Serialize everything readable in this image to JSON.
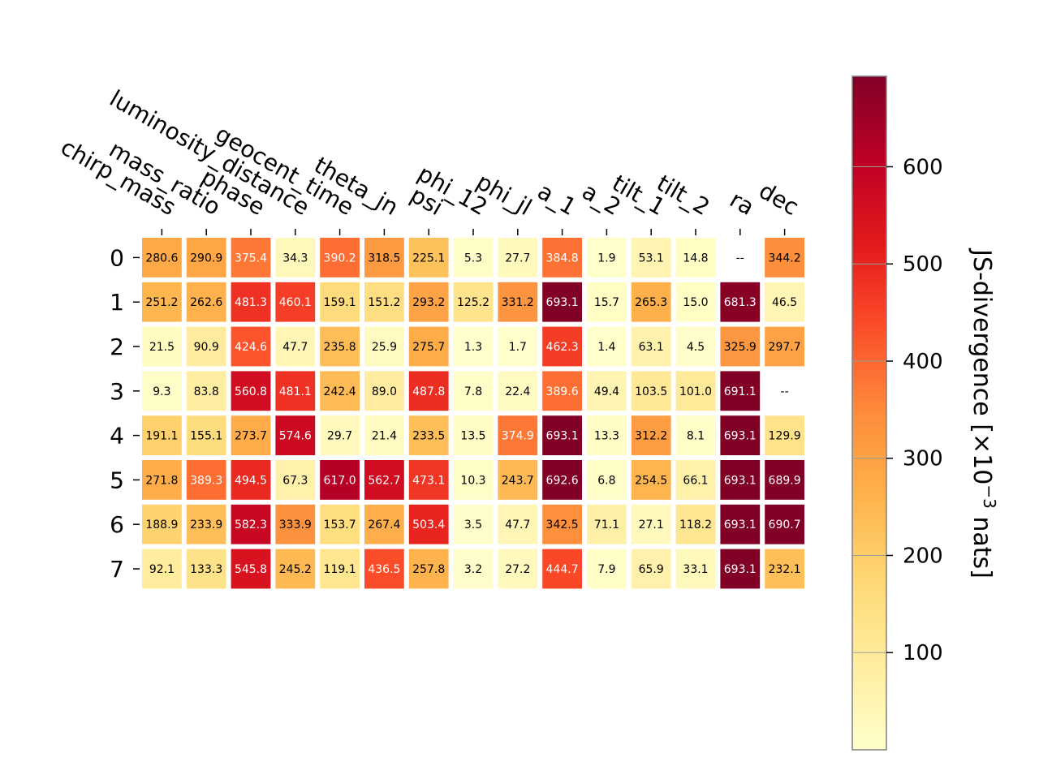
{
  "chart_data": {
    "type": "heatmap",
    "columns": [
      "chirp_mass",
      "mass_ratio",
      "phase",
      "luminosity_distance",
      "geocent_time",
      "theta_jn",
      "psi",
      "phi_12",
      "phi_jl",
      "a_1",
      "a_2",
      "tilt_1",
      "tilt_2",
      "ra",
      "dec"
    ],
    "rows": [
      "0",
      "1",
      "2",
      "3",
      "4",
      "5",
      "6",
      "7"
    ],
    "values": [
      [
        280.6,
        290.9,
        375.4,
        34.3,
        390.2,
        318.5,
        225.1,
        5.3,
        27.7,
        384.8,
        1.9,
        53.1,
        14.8,
        null,
        344.2
      ],
      [
        251.2,
        262.6,
        481.3,
        460.1,
        159.1,
        151.2,
        293.2,
        125.2,
        331.2,
        693.1,
        15.7,
        265.3,
        15.0,
        681.3,
        46.5
      ],
      [
        21.5,
        90.9,
        424.6,
        47.7,
        235.8,
        25.9,
        275.7,
        1.3,
        1.7,
        462.3,
        1.4,
        63.1,
        4.5,
        325.9,
        297.7
      ],
      [
        9.3,
        83.8,
        560.8,
        481.1,
        242.4,
        89.0,
        487.8,
        7.8,
        22.4,
        389.6,
        49.4,
        103.5,
        101.0,
        691.1,
        null
      ],
      [
        191.1,
        155.1,
        273.7,
        574.6,
        29.7,
        21.4,
        233.5,
        13.5,
        374.9,
        693.1,
        13.3,
        312.2,
        8.1,
        693.1,
        129.9
      ],
      [
        271.8,
        389.3,
        494.5,
        67.3,
        617.0,
        562.7,
        473.1,
        10.3,
        243.7,
        692.6,
        6.8,
        254.5,
        66.1,
        693.1,
        689.9
      ],
      [
        188.9,
        233.9,
        582.3,
        333.9,
        153.7,
        267.4,
        503.4,
        3.5,
        47.7,
        342.5,
        71.1,
        27.1,
        118.2,
        693.1,
        690.7
      ],
      [
        92.1,
        133.3,
        545.8,
        245.2,
        119.1,
        436.5,
        257.8,
        3.2,
        27.2,
        444.7,
        7.9,
        65.9,
        33.1,
        693.1,
        232.1
      ]
    ],
    "missing_label": "--",
    "colormap": "YlOrRd",
    "vmin": 0,
    "vmax": 693.1,
    "colorbar": {
      "label_prefix": "JS-divergence [×10",
      "label_exponent": "−3",
      "label_suffix": " nats]",
      "ticks": [
        100,
        200,
        300,
        400,
        500,
        600
      ]
    }
  }
}
